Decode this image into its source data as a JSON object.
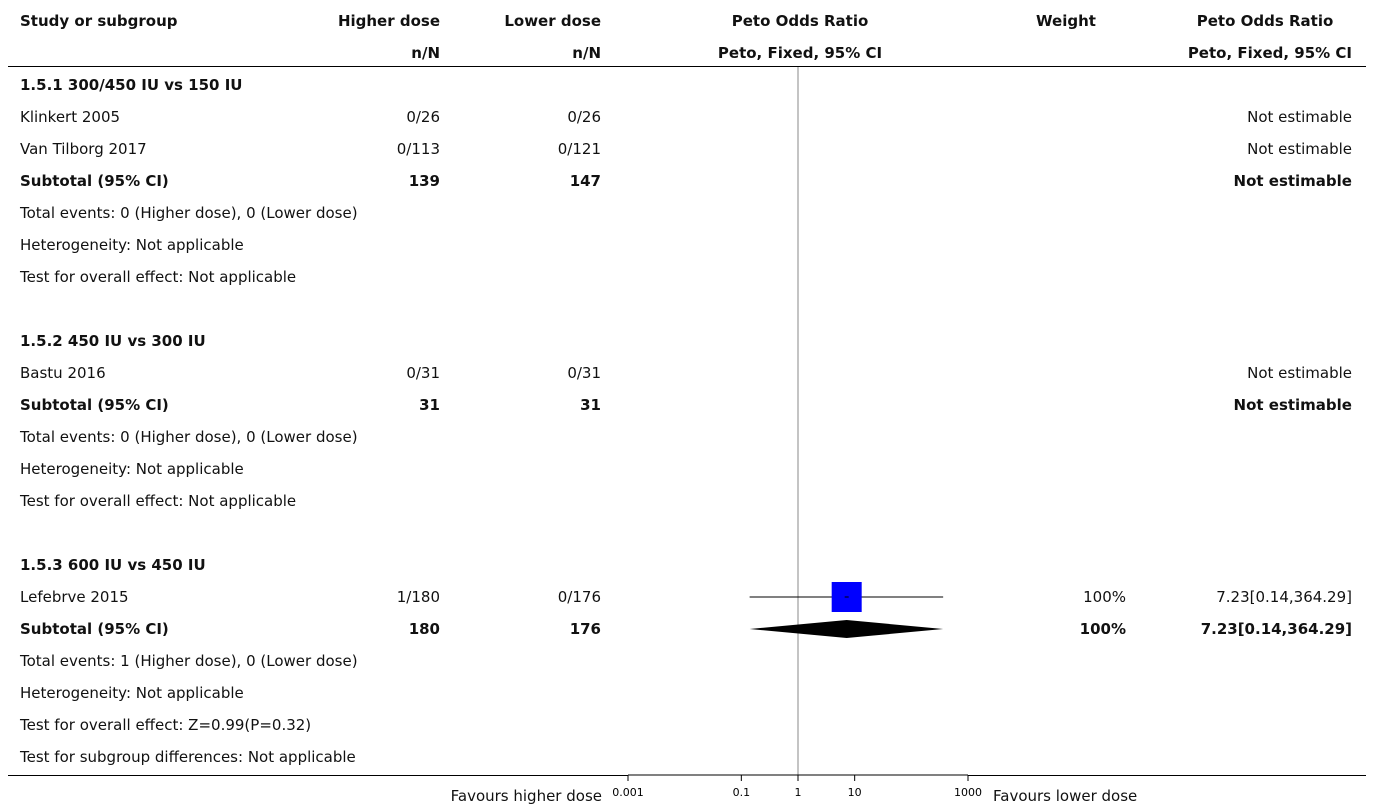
{
  "header": {
    "study": "Study or subgroup",
    "higher": "Higher dose",
    "higher_sub": "n/N",
    "lower": "Lower dose",
    "lower_sub": "n/N",
    "or_plot": "Peto Odds Ratio",
    "or_plot_sub": "Peto, Fixed, 95% CI",
    "weight": "Weight",
    "or_text": "Peto Odds Ratio",
    "or_text_sub": "Peto, Fixed, 95% CI"
  },
  "rows": [
    {
      "label": "1.5.1 300/450 IU vs 150 IU",
      "kind": "group"
    },
    {
      "label": "Klinkert 2005",
      "kind": "study",
      "higher": "0/26",
      "lower": "0/26",
      "weight": "",
      "ci": "Not estimable"
    },
    {
      "label": "Van Tilborg 2017",
      "kind": "study",
      "higher": "0/113",
      "lower": "0/121",
      "weight": "",
      "ci": "Not estimable"
    },
    {
      "label": "Subtotal (95% CI)",
      "kind": "subtotal",
      "higher": "139",
      "lower": "147",
      "weight": "",
      "ci": "Not estimable"
    },
    {
      "label": "Total events: 0 (Higher dose), 0 (Lower dose)",
      "kind": "note"
    },
    {
      "label": "Heterogeneity: Not applicable",
      "kind": "note"
    },
    {
      "label": "Test for overall effect: Not applicable",
      "kind": "note"
    },
    {
      "label": "",
      "kind": "blank"
    },
    {
      "label": "1.5.2 450 IU vs 300 IU",
      "kind": "group"
    },
    {
      "label": "Bastu 2016",
      "kind": "study",
      "higher": "0/31",
      "lower": "0/31",
      "weight": "",
      "ci": "Not estimable"
    },
    {
      "label": "Subtotal (95% CI)",
      "kind": "subtotal",
      "higher": "31",
      "lower": "31",
      "weight": "",
      "ci": "Not estimable"
    },
    {
      "label": "Total events: 0 (Higher dose), 0 (Lower dose)",
      "kind": "note"
    },
    {
      "label": "Heterogeneity: Not applicable",
      "kind": "note"
    },
    {
      "label": "Test for overall effect: Not applicable",
      "kind": "note"
    },
    {
      "label": "",
      "kind": "blank"
    },
    {
      "label": "1.5.3 600 IU vs 450 IU",
      "kind": "group"
    },
    {
      "label": "Lefebrve 2015",
      "kind": "study",
      "higher": "1/180",
      "lower": "0/176",
      "weight": "100%",
      "ci": "7.23[0.14,364.29]"
    },
    {
      "label": "Subtotal (95% CI)",
      "kind": "subtotal",
      "higher": "180",
      "lower": "176",
      "weight": "100%",
      "ci": "7.23[0.14,364.29]"
    },
    {
      "label": "Total events: 1 (Higher dose), 0 (Lower dose)",
      "kind": "note"
    },
    {
      "label": "Heterogeneity: Not applicable",
      "kind": "note"
    },
    {
      "label": "Test for overall effect: Z=0.99(P=0.32)",
      "kind": "note"
    },
    {
      "label": "Test for subgroup differences: Not applicable",
      "kind": "note"
    }
  ],
  "chart_data": {
    "type": "scatter",
    "x_scale": "log",
    "xlim": [
      0.001,
      1000
    ],
    "null_value": 1,
    "ticks": [
      "0.001",
      "0.1",
      "1",
      "10",
      "1000"
    ],
    "tick_values": [
      0.001,
      0.1,
      1,
      10,
      1000
    ],
    "favours_left": "Favours higher dose",
    "favours_right": "Favours lower dose",
    "studies": [
      {
        "name": "Lefebrve 2015",
        "estimate": 7.23,
        "lower": 0.14,
        "upper": 364.29,
        "weight": 100
      }
    ],
    "subtotals": [
      {
        "name": "Subtotal (95% CI)",
        "estimate": 7.23,
        "lower": 0.14,
        "upper": 364.29
      }
    ],
    "colors": {
      "study_box": "#0000ff",
      "diamond": "#000000",
      "lines": "#000000",
      "null_line": "#888888"
    }
  }
}
